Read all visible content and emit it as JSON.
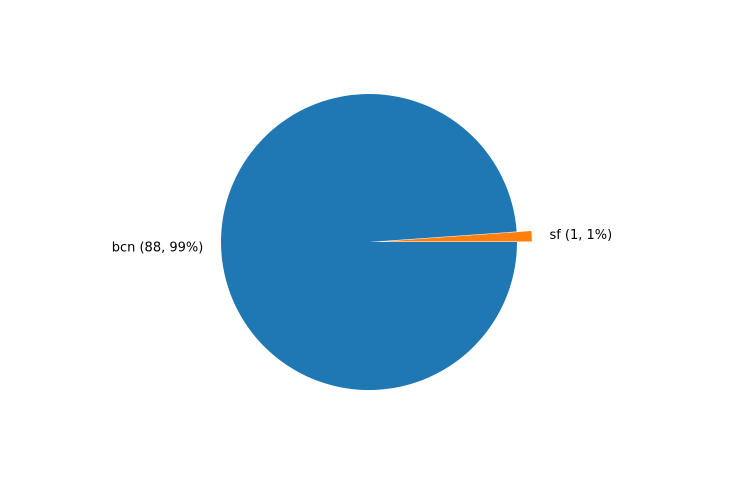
{
  "chart_data": {
    "type": "pie",
    "title": "",
    "slices": [
      {
        "name": "bcn",
        "value": 88,
        "label": "bcn (88, 99%)",
        "color": "#1f77b4",
        "explode": 0
      },
      {
        "name": "sf",
        "value": 1,
        "label": "sf (1, 1%)",
        "color": "#ff7f0e",
        "explode": 0.1
      }
    ],
    "start_angle_deg": 0,
    "direction": "clockwise",
    "legend": "none"
  }
}
